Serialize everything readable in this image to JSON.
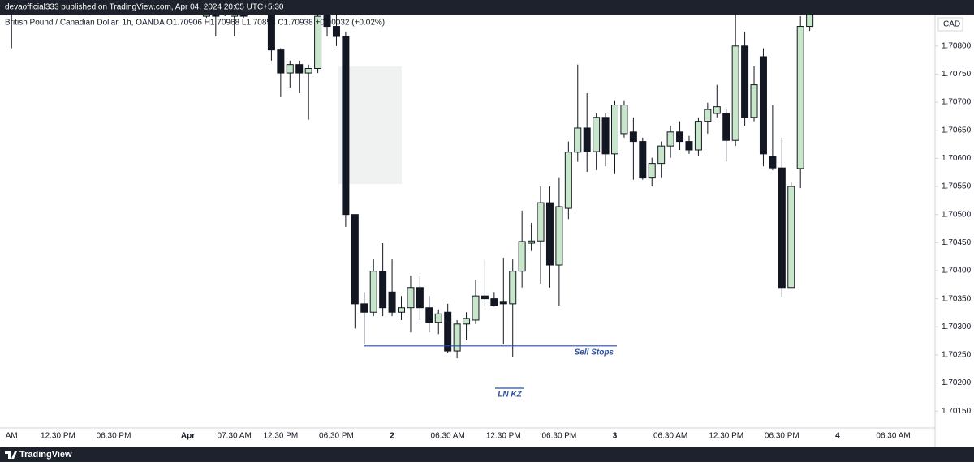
{
  "header": {
    "published": "devaofficial333 published on TradingView.com, Apr 04, 2024 20:05 UTC+5:30"
  },
  "footer": {
    "brand": "TradingView"
  },
  "chart_data": {
    "type": "candlestick",
    "title": "British Pound / Canadian Dollar, 1h, OANDA  O1.70906 H1.70968 L1.70858 C1.70938 +0.00032 (+0.02%)",
    "currency": "CAD",
    "up_color": "#c8e6c9",
    "down_color": "#131722",
    "categories": [
      null,
      "AM",
      null,
      null,
      null,
      null,
      "12:30 PM",
      null,
      null,
      null,
      null,
      null,
      "06:30 PM",
      null,
      null,
      null,
      null,
      null,
      null,
      null,
      "Apr",
      null,
      null,
      null,
      null,
      "07:30 AM",
      null,
      null,
      null,
      null,
      "12:30 PM",
      null,
      null,
      null,
      null,
      null,
      "06:30 PM",
      null,
      null,
      null,
      null,
      null,
      "2",
      null,
      null,
      null,
      null,
      null,
      "06:30 AM",
      null,
      null,
      null,
      null,
      null,
      "12:30 PM",
      null,
      null,
      null,
      null,
      null,
      "06:30 PM",
      null,
      null,
      null,
      null,
      null,
      "3",
      null,
      null,
      null,
      null,
      null,
      "06:30 AM",
      null,
      null,
      null,
      null,
      null,
      "12:30 PM",
      null,
      null,
      null,
      null,
      null,
      "06:30 PM",
      null,
      null,
      null,
      null,
      null,
      "4",
      null,
      null,
      null,
      null,
      null,
      "06:30 AM",
      null,
      null,
      null,
      null
    ],
    "open": [
      null,
      1.70868,
      null,
      null,
      null,
      null,
      null,
      null,
      null,
      null,
      null,
      null,
      null,
      null,
      null,
      null,
      null,
      null,
      null,
      null,
      null,
      null,
      1.70853,
      1.70868,
      1.70856,
      1.70853,
      1.70868,
      null,
      null,
      1.70856,
      1.70793,
      1.70752,
      1.70767,
      1.70752,
      1.7076,
      1.70868,
      1.70835,
      1.70817,
      1.705,
      1.70341,
      1.70326,
      1.70399,
      1.70362,
      1.70326,
      1.70334,
      1.7037,
      1.70334,
      1.70308,
      1.70326,
      1.70257,
      1.70305,
      1.70312,
      1.70355,
      1.7035,
      1.70344,
      1.70341,
      1.70399,
      1.70449,
      1.70453,
      1.70521,
      1.7041,
      1.70511,
      1.70611,
      1.70654,
      1.70612,
      1.70673,
      1.70608,
      1.70644,
      1.70647,
      1.7063,
      1.70565,
      1.70591,
      1.70622,
      1.70647,
      1.7063,
      1.70615,
      1.70666,
      1.7068,
      1.7068,
      1.70632,
      1.708,
      1.70673,
      1.70781,
      1.70604,
      1.70583,
      1.7037,
      1.70582,
      1.70835,
      null,
      null,
      null,
      null,
      null,
      null,
      null,
      null,
      null,
      null,
      null,
      null,
      null
    ],
    "high": [
      null,
      1.70868,
      null,
      null,
      null,
      null,
      null,
      null,
      null,
      null,
      null,
      null,
      null,
      null,
      null,
      null,
      null,
      null,
      null,
      null,
      null,
      null,
      1.7087,
      1.7087,
      1.7087,
      1.7087,
      1.7087,
      null,
      null,
      1.70868,
      1.70796,
      1.70774,
      1.70774,
      1.70767,
      1.70868,
      1.70875,
      1.70856,
      1.70825,
      1.705,
      1.70362,
      1.7042,
      1.70449,
      1.7042,
      1.70355,
      1.70391,
      1.70391,
      1.70355,
      1.70331,
      1.70341,
      1.70312,
      1.70326,
      1.70384,
      1.7042,
      1.70362,
      1.70423,
      1.7042,
      1.70507,
      1.70485,
      1.7055,
      1.7055,
      1.70565,
      1.7063,
      1.70767,
      1.70716,
      1.7068,
      1.7068,
      1.70702,
      1.70702,
      1.70673,
      1.70637,
      1.70601,
      1.7063,
      1.70658,
      1.70666,
      1.7064,
      1.70673,
      1.70699,
      1.70731,
      1.70687,
      1.70868,
      1.70825,
      1.70764,
      1.70796,
      1.70695,
      1.70637,
      1.70557,
      1.70853,
      1.70868,
      null,
      null,
      null,
      null,
      null,
      null,
      null,
      null,
      null,
      null,
      null,
      null,
      null
    ],
    "low": [
      null,
      1.70796,
      null,
      null,
      null,
      null,
      null,
      null,
      null,
      null,
      null,
      null,
      null,
      null,
      null,
      null,
      null,
      null,
      null,
      null,
      null,
      null,
      1.7085,
      1.70817,
      1.70853,
      1.70817,
      1.7085,
      null,
      null,
      1.70774,
      1.70709,
      1.70726,
      1.70716,
      1.70669,
      1.70752,
      1.70817,
      1.708,
      1.70478,
      1.70297,
      1.70269,
      1.70319,
      1.70319,
      1.70319,
      1.70312,
      1.7029,
      1.70312,
      1.7029,
      1.70287,
      1.70254,
      1.70244,
      1.70276,
      1.70305,
      1.70336,
      1.70336,
      1.70269,
      1.70247,
      1.7037,
      1.70435,
      1.70377,
      1.7037,
      1.70338,
      1.70492,
      1.70594,
      1.70576,
      1.70579,
      1.70586,
      1.70572,
      1.70637,
      1.70562,
      1.70562,
      1.7055,
      1.70565,
      1.70601,
      1.70615,
      1.70608,
      1.70605,
      1.70644,
      1.70673,
      1.70594,
      1.70622,
      1.70658,
      1.70666,
      1.70586,
      1.70579,
      1.70353,
      1.7037,
      1.70547,
      1.70827,
      null,
      null,
      null,
      null,
      null,
      null,
      null,
      null,
      null,
      null,
      null,
      null,
      null
    ],
    "close": [
      null,
      1.70861,
      null,
      null,
      null,
      null,
      null,
      null,
      null,
      null,
      null,
      null,
      null,
      null,
      null,
      null,
      null,
      null,
      null,
      null,
      null,
      null,
      1.70868,
      1.70853,
      1.70868,
      1.70868,
      1.70853,
      null,
      null,
      1.70793,
      1.70752,
      1.70767,
      1.70752,
      1.7076,
      1.70853,
      1.70835,
      1.70817,
      1.705,
      1.70341,
      1.70326,
      1.70399,
      1.70334,
      1.70326,
      1.70334,
      1.7037,
      1.70334,
      1.70308,
      1.70323,
      1.70257,
      1.70305,
      1.70315,
      1.70355,
      1.7035,
      1.70338,
      1.70341,
      1.70399,
      1.70452,
      1.70453,
      1.70521,
      1.7041,
      1.70514,
      1.70611,
      1.70654,
      1.70612,
      1.70673,
      1.70608,
      1.70695,
      1.70695,
      1.7063,
      1.70565,
      1.70591,
      1.70622,
      1.70647,
      1.7063,
      1.70615,
      1.70666,
      1.70687,
      1.70692,
      1.70632,
      1.708,
      1.70673,
      1.70731,
      1.70608,
      1.70583,
      1.7037,
      1.7055,
      1.70835,
      1.70861,
      null,
      null,
      null,
      null,
      null,
      null,
      null,
      null,
      null,
      null,
      null,
      null,
      null
    ],
    "ylim": [
      1.7012,
      1.70856
    ],
    "yticks": [
      {
        "value": 1.7015,
        "label": "1.70150"
      },
      {
        "value": 1.702,
        "label": "1.70200"
      },
      {
        "value": 1.7025,
        "label": "1.70250"
      },
      {
        "value": 1.703,
        "label": "1.70300"
      },
      {
        "value": 1.7035,
        "label": "1.70350"
      },
      {
        "value": 1.704,
        "label": "1.70400"
      },
      {
        "value": 1.7045,
        "label": "1.70450"
      },
      {
        "value": 1.705,
        "label": "1.70500"
      },
      {
        "value": 1.7055,
        "label": "1.70550"
      },
      {
        "value": 1.706,
        "label": "1.70600"
      },
      {
        "value": 1.7065,
        "label": "1.70650"
      },
      {
        "value": 1.707,
        "label": "1.70700"
      },
      {
        "value": 1.7075,
        "label": "1.70750"
      },
      {
        "value": 1.708,
        "label": "1.70800"
      }
    ],
    "annotations": [
      {
        "text": "Sell Stops",
        "value": 1.70266,
        "color": "#2a4fa0"
      },
      {
        "text": "LN KZ",
        "color": "#2a4fa0"
      }
    ]
  }
}
